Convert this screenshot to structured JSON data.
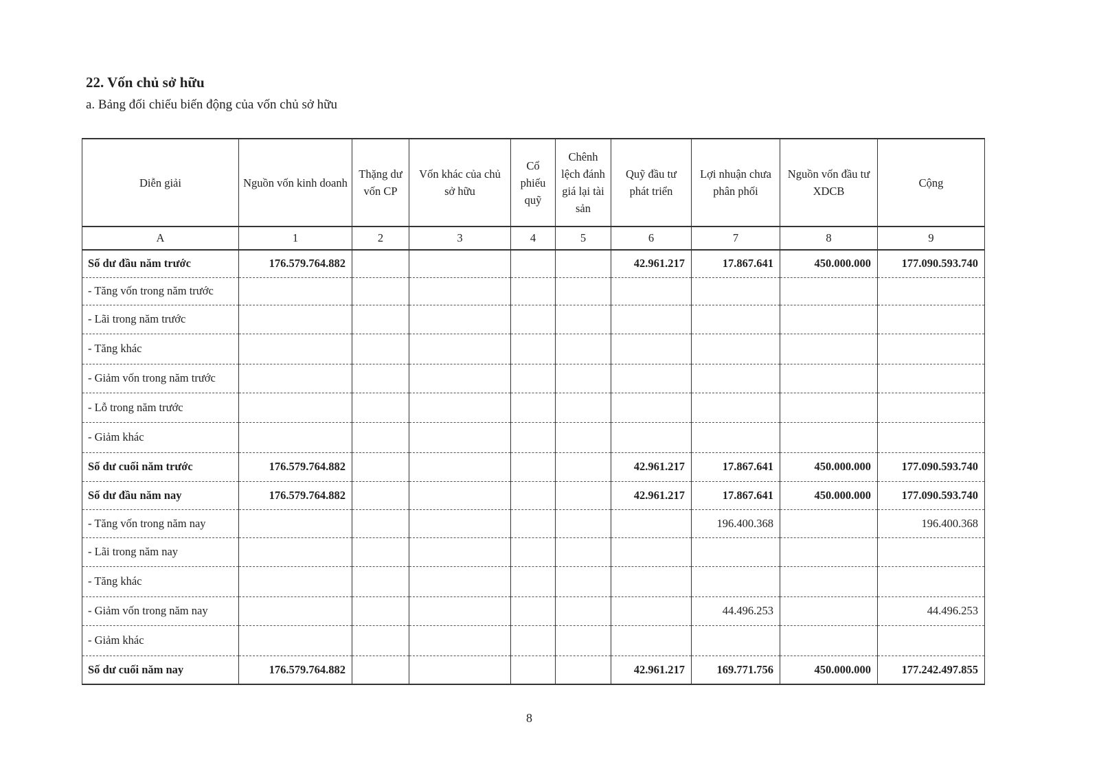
{
  "section_title": "22. Vốn chủ sở hữu",
  "subsection_title": "a. Bảng đối chiếu biến động của vốn chủ sở hữu",
  "table": {
    "headers": [
      "Diễn giải",
      "Nguồn vốn kinh doanh",
      "Thặng dư vốn CP",
      "Vốn khác của chủ sở hữu",
      "Cổ phiếu quỹ",
      "Chênh lệch đánh giá lại tài sản",
      "Quỹ đầu tư phát triển",
      "Lợi nhuận chưa phân phối",
      "Nguồn vốn đầu tư XDCB",
      "Cộng"
    ],
    "column_index": [
      "A",
      "1",
      "2",
      "3",
      "4",
      "5",
      "6",
      "7",
      "8",
      "9"
    ],
    "rows": [
      {
        "label": "Số dư đầu năm trước",
        "bold": true,
        "values": [
          "176.579.764.882",
          "",
          "",
          "",
          "",
          "42.961.217",
          "17.867.641",
          "450.000.000",
          "177.090.593.740"
        ]
      },
      {
        "label": "- Tăng vốn trong năm trước",
        "bold": false,
        "values": [
          "",
          "",
          "",
          "",
          "",
          "",
          "",
          "",
          ""
        ]
      },
      {
        "label": "- Lãi trong năm trước",
        "bold": false,
        "values": [
          "",
          "",
          "",
          "",
          "",
          "",
          "",
          "",
          ""
        ]
      },
      {
        "label": "- Tăng khác",
        "bold": false,
        "values": [
          "",
          "",
          "",
          "",
          "",
          "",
          "",
          "",
          ""
        ]
      },
      {
        "label": "- Giảm vốn trong năm trước",
        "bold": false,
        "values": [
          "",
          "",
          "",
          "",
          "",
          "",
          "",
          "",
          ""
        ]
      },
      {
        "label": "- Lỗ trong năm trước",
        "bold": false,
        "values": [
          "",
          "",
          "",
          "",
          "",
          "",
          "",
          "",
          ""
        ]
      },
      {
        "label": "- Giảm khác",
        "bold": false,
        "values": [
          "",
          "",
          "",
          "",
          "",
          "",
          "",
          "",
          ""
        ]
      },
      {
        "label": "Số dư cuối năm trước",
        "bold": true,
        "values": [
          "176.579.764.882",
          "",
          "",
          "",
          "",
          "42.961.217",
          "17.867.641",
          "450.000.000",
          "177.090.593.740"
        ]
      },
      {
        "label": "Số dư đầu năm nay",
        "bold": true,
        "values": [
          "176.579.764.882",
          "",
          "",
          "",
          "",
          "42.961.217",
          "17.867.641",
          "450.000.000",
          "177.090.593.740"
        ]
      },
      {
        "label": "- Tăng vốn trong năm nay",
        "bold": false,
        "values": [
          "",
          "",
          "",
          "",
          "",
          "",
          "196.400.368",
          "",
          "196.400.368"
        ]
      },
      {
        "label": "- Lãi trong năm nay",
        "bold": false,
        "values": [
          "",
          "",
          "",
          "",
          "",
          "",
          "",
          "",
          ""
        ]
      },
      {
        "label": "- Tăng khác",
        "bold": false,
        "values": [
          "",
          "",
          "",
          "",
          "",
          "",
          "",
          "",
          ""
        ]
      },
      {
        "label": "- Giảm vốn trong năm nay",
        "bold": false,
        "values": [
          "",
          "",
          "",
          "",
          "",
          "",
          "44.496.253",
          "",
          "44.496.253"
        ]
      },
      {
        "label": "- Giảm khác",
        "bold": false,
        "values": [
          "",
          "",
          "",
          "",
          "",
          "",
          "",
          "",
          ""
        ]
      },
      {
        "label": "Số dư cuối năm nay",
        "bold": true,
        "values": [
          "176.579.764.882",
          "",
          "",
          "",
          "",
          "42.961.217",
          "169.771.756",
          "450.000.000",
          "177.242.497.855"
        ]
      }
    ]
  },
  "page_number": "8"
}
